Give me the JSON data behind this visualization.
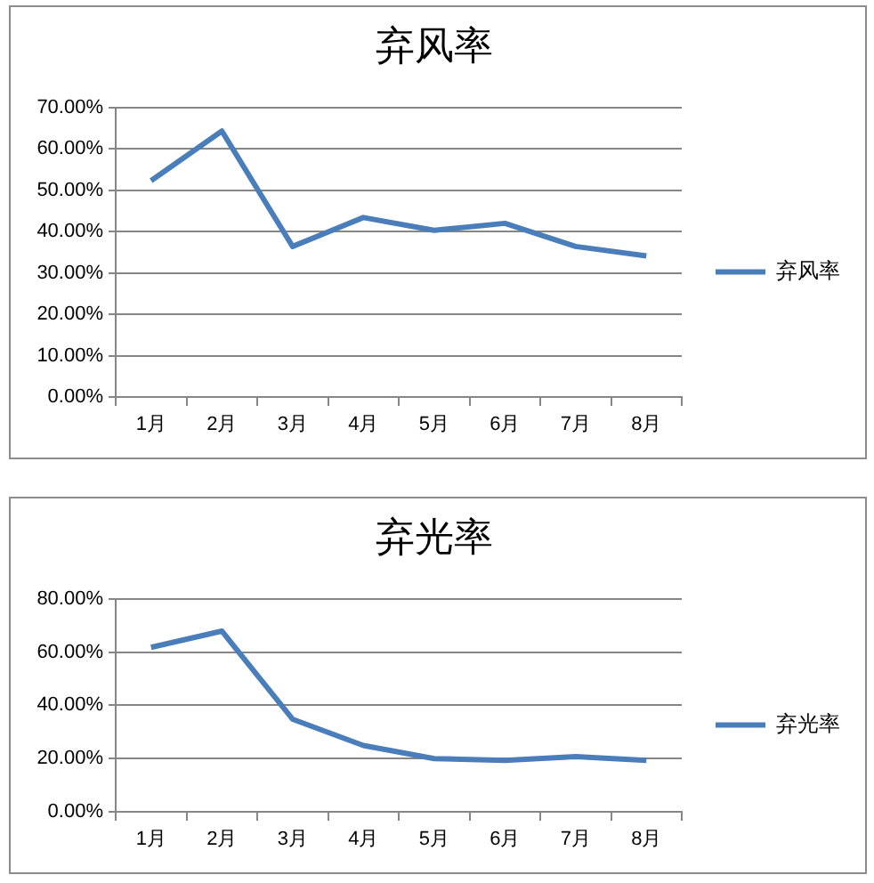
{
  "chart_data": [
    {
      "type": "line",
      "title": "弃风率",
      "categories": [
        "1月",
        "2月",
        "3月",
        "4月",
        "5月",
        "6月",
        "7月",
        "8月"
      ],
      "series": [
        {
          "name": "弃风率",
          "color": "#4a7ebb",
          "values": [
            52.3,
            64.3,
            36.4,
            43.4,
            40.3,
            42.0,
            36.4,
            34.1
          ]
        }
      ],
      "ylim": [
        0,
        70
      ],
      "yticks": [
        {
          "value": 0,
          "label": "0.00%"
        },
        {
          "value": 10,
          "label": "10.00%"
        },
        {
          "value": 20,
          "label": "20.00%"
        },
        {
          "value": 30,
          "label": "30.00%"
        },
        {
          "value": 40,
          "label": "40.00%"
        },
        {
          "value": 50,
          "label": "50.00%"
        },
        {
          "value": 60,
          "label": "60.00%"
        },
        {
          "value": 70,
          "label": "70.00%"
        }
      ],
      "grid": "y",
      "legend": "right"
    },
    {
      "type": "line",
      "title": "弃光率",
      "categories": [
        "1月",
        "2月",
        "3月",
        "4月",
        "5月",
        "6月",
        "7月",
        "8月"
      ],
      "series": [
        {
          "name": "弃光率",
          "color": "#4a7ebb",
          "values": [
            61.8,
            67.9,
            34.8,
            24.9,
            20.0,
            19.3,
            20.7,
            19.3
          ]
        }
      ],
      "ylim": [
        0,
        80
      ],
      "yticks": [
        {
          "value": 0,
          "label": "0.00%"
        },
        {
          "value": 20,
          "label": "20.00%"
        },
        {
          "value": 40,
          "label": "40.00%"
        },
        {
          "value": 60,
          "label": "60.00%"
        },
        {
          "value": 80,
          "label": "80.00%"
        }
      ],
      "grid": "y",
      "legend": "right"
    }
  ]
}
